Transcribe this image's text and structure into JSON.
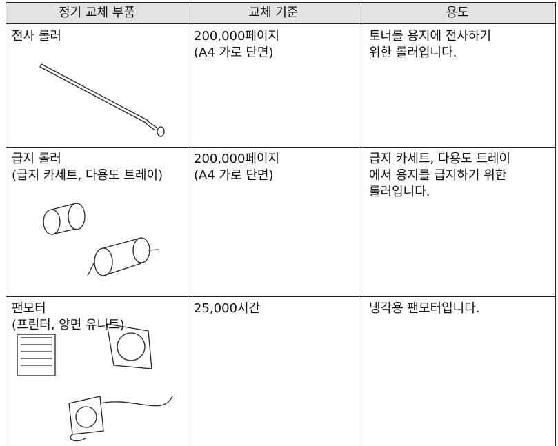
{
  "table": {
    "headers": [
      "정기 교체 부품",
      "교체 기준",
      "용도"
    ],
    "rows": [
      {
        "part": [
          "전사 롤러"
        ],
        "criteria": [
          "200,000페이지",
          "(A4 가로 단면)"
        ],
        "use": [
          "토너를 용지에 전사하기",
          "위한 롤러입니다."
        ]
      },
      {
        "part": [
          "급지 롤러",
          "(급지 카세트, 다용도 트레이)"
        ],
        "criteria": [
          "200,000페이지",
          "(A4 가로 단면)"
        ],
        "use": [
          "급지 카세트, 다용도 트레이",
          "에서 용지를 급지하기 위한",
          "롤러입니다."
        ]
      },
      {
        "part": [
          "팬모터",
          "(프린터, 양면 유니트)"
        ],
        "criteria": [
          "25,000시간"
        ],
        "use": [
          "냉각용 팬모터입니다."
        ]
      }
    ]
  }
}
